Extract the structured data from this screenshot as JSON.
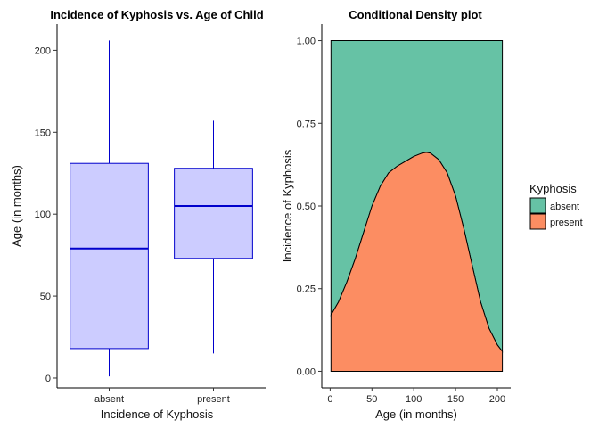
{
  "chart_data": [
    {
      "type": "boxplot",
      "title": "Incidence of Kyphosis vs. Age of Child",
      "xlabel": "Incidence of Kyphosis",
      "ylabel": "Age (in months)",
      "categories": [
        "absent",
        "present"
      ],
      "ylim": [
        -6,
        216
      ],
      "yticks": [
        0,
        50,
        100,
        150,
        200
      ],
      "boxes": [
        {
          "category": "absent",
          "min": 1,
          "q1": 18,
          "median": 79,
          "q3": 131,
          "max": 206
        },
        {
          "category": "present",
          "min": 15,
          "q1": 73,
          "median": 105,
          "q3": 128,
          "max": 157
        }
      ],
      "fill_color": "#ccccff",
      "line_color": "#0000cc",
      "grid": false
    },
    {
      "type": "area",
      "subtype": "conditional_density",
      "title": "Conditional Density plot",
      "xlabel": "Age (in months)",
      "ylabel": "Incidence of Kyphosis",
      "xlim": [
        -10,
        216
      ],
      "ylim": [
        -0.05,
        1.05
      ],
      "xticks": [
        0,
        50,
        100,
        150,
        200
      ],
      "yticks": [
        "0.00",
        "0.25",
        "0.50",
        "0.75",
        "1.00"
      ],
      "legend": {
        "title": "Kyphosis",
        "position": "right"
      },
      "x": [
        1,
        10,
        20,
        30,
        40,
        50,
        60,
        70,
        80,
        90,
        100,
        110,
        115,
        120,
        130,
        140,
        150,
        160,
        170,
        180,
        190,
        200,
        206
      ],
      "series": [
        {
          "name": "present",
          "color": "#fc8d62",
          "values": [
            0.17,
            0.21,
            0.27,
            0.34,
            0.42,
            0.5,
            0.56,
            0.6,
            0.62,
            0.635,
            0.65,
            0.66,
            0.662,
            0.66,
            0.64,
            0.6,
            0.53,
            0.43,
            0.32,
            0.21,
            0.13,
            0.08,
            0.06
          ]
        },
        {
          "name": "absent",
          "color": "#66c2a5",
          "values": [
            1,
            1,
            1,
            1,
            1,
            1,
            1,
            1,
            1,
            1,
            1,
            1,
            1,
            1,
            1,
            1,
            1,
            1,
            1,
            1,
            1,
            1,
            1
          ]
        }
      ],
      "grid": false
    }
  ]
}
